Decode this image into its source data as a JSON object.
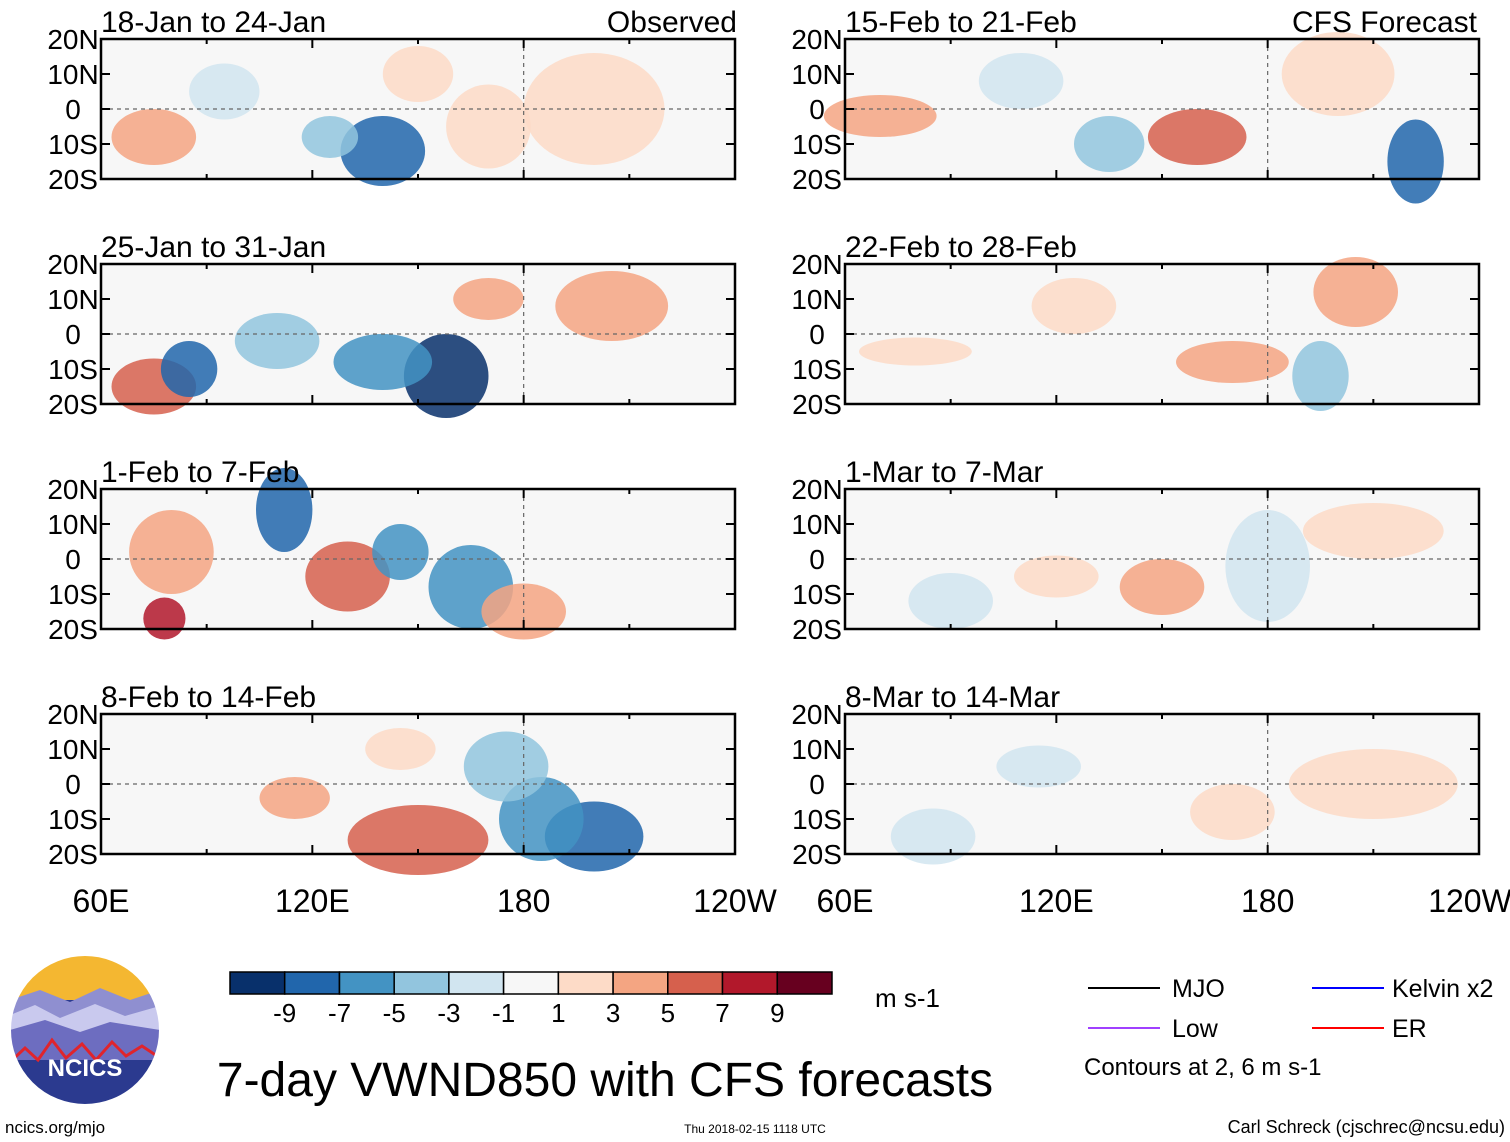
{
  "chart_data": {
    "type": "heatmap",
    "title": "7-day VWND850 with CFS forecasts",
    "variable": "VWND850",
    "units": "m s-1",
    "observed_label": "Observed",
    "forecast_label": "CFS Forecast",
    "lon_ticks": [
      "60E",
      "120E",
      "180",
      "120W"
    ],
    "lon_range": [
      60,
      240
    ],
    "lat_ticks": [
      "20N",
      "10N",
      "0",
      "10S",
      "20S"
    ],
    "lat_range": [
      -20,
      20
    ],
    "panels": [
      {
        "column": "observed",
        "period": "18-Jan to 24-Jan"
      },
      {
        "column": "observed",
        "period": "25-Jan to 31-Jan"
      },
      {
        "column": "observed",
        "period": "1-Feb to 7-Feb"
      },
      {
        "column": "observed",
        "period": "8-Feb to 14-Feb"
      },
      {
        "column": "forecast",
        "period": "15-Feb to 21-Feb"
      },
      {
        "column": "forecast",
        "period": "22-Feb to 28-Feb"
      },
      {
        "column": "forecast",
        "period": "1-Mar to 7-Mar"
      },
      {
        "column": "forecast",
        "period": "8-Mar to 14-Mar"
      }
    ],
    "colorbar": {
      "labels": [
        "-9",
        "-7",
        "-5",
        "-3",
        "-1",
        "1",
        "3",
        "5",
        "7",
        "9"
      ],
      "colors": [
        "#08306b",
        "#2166ac",
        "#4393c3",
        "#92c5de",
        "#d1e5f0",
        "#f7f7f7",
        "#fddbc7",
        "#f4a582",
        "#d6604d",
        "#b2182b",
        "#67001f"
      ]
    },
    "legend": [
      {
        "label": "MJO",
        "color": "#000000"
      },
      {
        "label": "Kelvin x2",
        "color": "#0000ff"
      },
      {
        "label": "Low",
        "color": "#a040ff"
      },
      {
        "label": "ER",
        "color": "#ff0000"
      }
    ],
    "contour_note": "Contours at 2, 6 m s-1"
  },
  "footer": {
    "logo_text": "NCICS",
    "site": "ncics.org/mjo",
    "timestamp": "Thu 2018-02-15 1118 UTC",
    "author": "Carl Schreck (cjschrec@ncsu.edu)"
  }
}
